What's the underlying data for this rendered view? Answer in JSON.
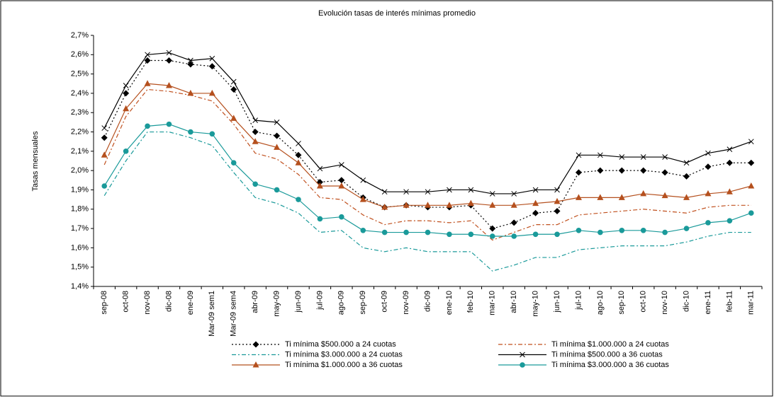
{
  "chart_data": {
    "type": "line",
    "title": "Evolución tasas de interés mínimas promedio",
    "y_label": "Tasas mensuales",
    "categories": [
      "sep-08",
      "oct-08",
      "nov-08",
      "dic-08",
      "ene-09",
      "Mar-09 sem1",
      "Mar-09 sem4",
      "abr-09",
      "may-09",
      "jun-09",
      "jul-09",
      "ago-09",
      "sep-09",
      "oct-09",
      "nov-09",
      "dic-09",
      "ene-10",
      "feb-10",
      "mar-10",
      "abr-10",
      "may-10",
      "jun-10",
      "jul-10",
      "ago-10",
      "sep-10",
      "oct-10",
      "nov-10",
      "dic-10",
      "ene-11",
      "feb-11",
      "mar-11"
    ],
    "ylim": [
      1.4,
      2.7
    ],
    "yticks": [
      {
        "value": 1.4,
        "label": "1,4%"
      },
      {
        "value": 1.5,
        "label": "1,5%"
      },
      {
        "value": 1.6,
        "label": "1,6%"
      },
      {
        "value": 1.7,
        "label": "1,7%"
      },
      {
        "value": 1.8,
        "label": "1,8%"
      },
      {
        "value": 1.9,
        "label": "1,9%"
      },
      {
        "value": 2.0,
        "label": "2,0%"
      },
      {
        "value": 2.1,
        "label": "2,1%"
      },
      {
        "value": 2.2,
        "label": "2,2%"
      },
      {
        "value": 2.3,
        "label": "2,3%"
      },
      {
        "value": 2.4,
        "label": "2,4%"
      },
      {
        "value": 2.5,
        "label": "2,5%"
      },
      {
        "value": 2.6,
        "label": "2,6%"
      },
      {
        "value": 2.7,
        "label": "2,7%"
      }
    ],
    "series": [
      {
        "name": "Ti mínima $500.000 a 24 cuotas",
        "color": "#000000",
        "line_style": "dotted",
        "marker": "diamond",
        "values": [
          2.17,
          2.4,
          2.57,
          2.57,
          2.55,
          2.54,
          2.42,
          2.2,
          2.18,
          2.08,
          1.94,
          1.95,
          1.86,
          1.81,
          1.82,
          1.81,
          1.81,
          1.82,
          1.7,
          1.73,
          1.78,
          1.79,
          1.99,
          2.0,
          2.0,
          2.0,
          1.99,
          1.97,
          2.02,
          2.04,
          2.04
        ]
      },
      {
        "name": "Ti mínima $1.000.000 a 24 cuotas",
        "color": "#c0501e",
        "line_style": "dashdot",
        "marker": "none",
        "values": [
          2.03,
          2.28,
          2.42,
          2.41,
          2.39,
          2.36,
          2.24,
          2.09,
          2.06,
          1.98,
          1.86,
          1.85,
          1.77,
          1.72,
          1.74,
          1.74,
          1.73,
          1.74,
          1.64,
          1.68,
          1.72,
          1.72,
          1.77,
          1.78,
          1.79,
          1.8,
          1.79,
          1.78,
          1.81,
          1.82,
          1.82
        ]
      },
      {
        "name": "Ti mínima $3.000.000 a 24 cuotas",
        "color": "#1a9a9a",
        "line_style": "dashdot",
        "marker": "none",
        "values": [
          1.87,
          2.05,
          2.2,
          2.2,
          2.17,
          2.13,
          1.99,
          1.86,
          1.83,
          1.78,
          1.68,
          1.69,
          1.6,
          1.58,
          1.6,
          1.58,
          1.58,
          1.58,
          1.48,
          1.51,
          1.55,
          1.55,
          1.59,
          1.6,
          1.61,
          1.61,
          1.61,
          1.63,
          1.66,
          1.68,
          1.68
        ]
      },
      {
        "name": "Ti mínima $500.000 a 36 cuotas",
        "color": "#000000",
        "line_style": "solid",
        "marker": "x",
        "values": [
          2.22,
          2.44,
          2.6,
          2.61,
          2.57,
          2.58,
          2.46,
          2.26,
          2.25,
          2.14,
          2.01,
          2.03,
          1.95,
          1.89,
          1.89,
          1.89,
          1.9,
          1.9,
          1.88,
          1.88,
          1.9,
          1.9,
          2.08,
          2.08,
          2.07,
          2.07,
          2.07,
          2.04,
          2.09,
          2.11,
          2.15
        ]
      },
      {
        "name": "Ti mínima $1.000.000 a 36 cuotas",
        "color": "#b5501e",
        "line_style": "solid",
        "marker": "triangle",
        "values": [
          2.08,
          2.32,
          2.45,
          2.44,
          2.4,
          2.4,
          2.27,
          2.15,
          2.12,
          2.04,
          1.92,
          1.92,
          1.85,
          1.81,
          1.82,
          1.82,
          1.82,
          1.83,
          1.82,
          1.82,
          1.83,
          1.84,
          1.86,
          1.86,
          1.86,
          1.88,
          1.87,
          1.86,
          1.88,
          1.89,
          1.92
        ]
      },
      {
        "name": "Ti mínima $3.000.000 a 36 cuotas",
        "color": "#1a9a9a",
        "line_style": "solid",
        "marker": "circle",
        "values": [
          1.92,
          2.1,
          2.23,
          2.24,
          2.2,
          2.19,
          2.04,
          1.93,
          1.9,
          1.85,
          1.75,
          1.76,
          1.69,
          1.68,
          1.68,
          1.68,
          1.67,
          1.67,
          1.66,
          1.66,
          1.67,
          1.67,
          1.69,
          1.68,
          1.69,
          1.69,
          1.68,
          1.7,
          1.73,
          1.74,
          1.78
        ]
      }
    ]
  }
}
